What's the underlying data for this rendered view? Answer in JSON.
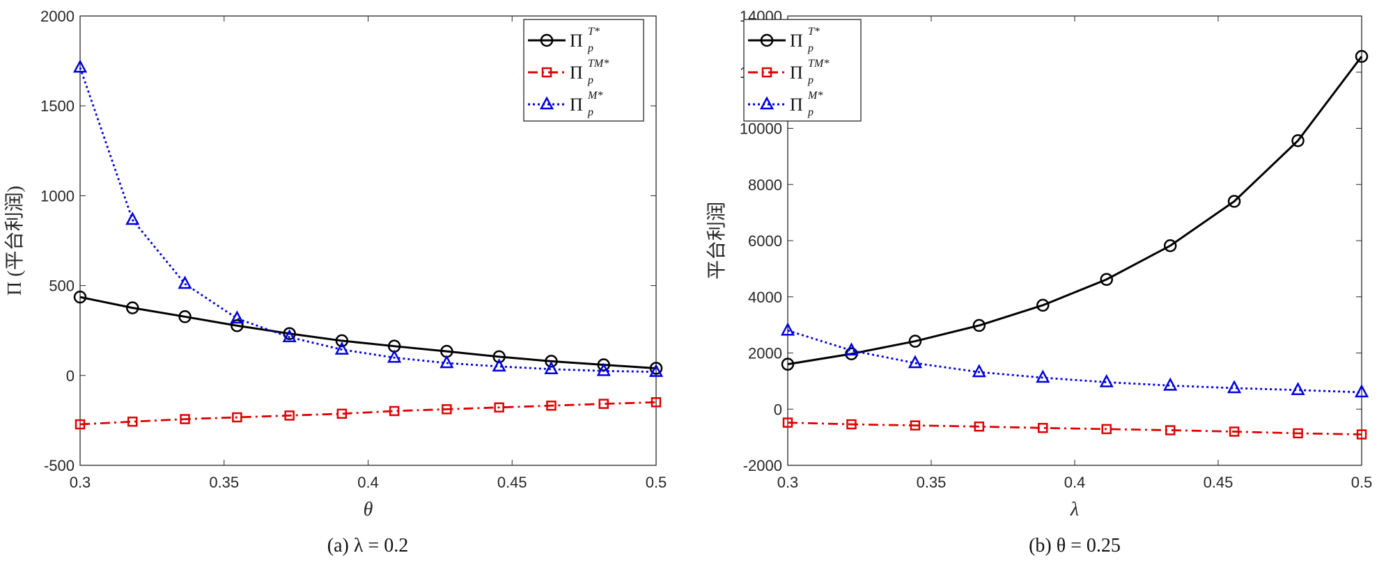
{
  "chart_data": [
    {
      "type": "line",
      "caption": "(a) λ = 0.2",
      "xlabel": "θ",
      "ylabel": "Π (平台利润)",
      "xlim": [
        0.3,
        0.5
      ],
      "ylim": [
        -500,
        2000
      ],
      "xticks": [
        0.3,
        0.35,
        0.4,
        0.45,
        0.5
      ],
      "xtick_labels": [
        "0.3",
        "0.35",
        "0.4",
        "0.45",
        "0.5"
      ],
      "yticks": [
        -500,
        0,
        500,
        1000,
        1500,
        2000
      ],
      "ytick_labels": [
        "-500",
        "0",
        "500",
        "1000",
        "1500",
        "2000"
      ],
      "legend_position": "top-right",
      "x": [
        0.3,
        0.3182,
        0.3364,
        0.3545,
        0.3727,
        0.3909,
        0.4091,
        0.4273,
        0.4455,
        0.4636,
        0.4818,
        0.5
      ],
      "series": [
        {
          "name": "Π_p^{T*}",
          "base": "Π",
          "sub": "p",
          "sup": "T*",
          "color": "#000000",
          "marker": "circle",
          "dash": "solid",
          "values": [
            436,
            376,
            327,
            277,
            233,
            193,
            163,
            134,
            104,
            79,
            59,
            40
          ]
        },
        {
          "name": "Π_p^{TM*}",
          "base": "Π",
          "sub": "p",
          "sup": "TM*",
          "color": "#e00000",
          "marker": "square",
          "dash": "dashdot",
          "values": [
            -272,
            -257,
            -243,
            -233,
            -223,
            -213,
            -198,
            -188,
            -178,
            -168,
            -158,
            -149
          ]
        },
        {
          "name": "Π_p^{M*}",
          "base": "Π",
          "sub": "p",
          "sup": "M*",
          "color": "#0000e0",
          "marker": "triangle",
          "dash": "dotted",
          "values": [
            1713,
            866,
            510,
            317,
            213,
            144,
            99,
            69,
            50,
            35,
            25,
            20
          ]
        }
      ]
    },
    {
      "type": "line",
      "caption": "(b) θ = 0.25",
      "xlabel": "λ",
      "ylabel": "平台利润",
      "xlim": [
        0.3,
        0.5
      ],
      "ylim": [
        -2000,
        14000
      ],
      "xticks": [
        0.3,
        0.35,
        0.4,
        0.45,
        0.5
      ],
      "xtick_labels": [
        "0.3",
        "0.35",
        "0.4",
        "0.45",
        "0.5"
      ],
      "yticks": [
        -2000,
        0,
        2000,
        4000,
        6000,
        8000,
        10000,
        12000,
        14000
      ],
      "ytick_labels": [
        "-2000",
        "0",
        "2000",
        "4000",
        "6000",
        "8000",
        "10000",
        "12000",
        "14000"
      ],
      "legend_position": "top-left",
      "x": [
        0.3,
        0.3222,
        0.3444,
        0.3667,
        0.3889,
        0.4111,
        0.4333,
        0.4556,
        0.4778,
        0.5
      ],
      "series": [
        {
          "name": "Π_p^{T*}",
          "base": "Π",
          "sub": "p",
          "sup": "T*",
          "color": "#000000",
          "marker": "circle",
          "dash": "solid",
          "values": [
            1600,
            1970,
            2420,
            2980,
            3700,
            4620,
            5820,
            7400,
            9560,
            12560
          ]
        },
        {
          "name": "Π_p^{TM*}",
          "base": "Π",
          "sub": "p",
          "sup": "TM*",
          "color": "#e00000",
          "marker": "square",
          "dash": "dashdot",
          "values": [
            -480,
            -540,
            -580,
            -620,
            -670,
            -710,
            -750,
            -800,
            -860,
            -900
          ]
        },
        {
          "name": "Π_p^{M*}",
          "base": "Π",
          "sub": "p",
          "sup": "M*",
          "color": "#0000e0",
          "marker": "triangle",
          "dash": "dotted",
          "values": [
            2800,
            2090,
            1640,
            1320,
            1120,
            960,
            840,
            750,
            680,
            600
          ]
        }
      ]
    }
  ]
}
